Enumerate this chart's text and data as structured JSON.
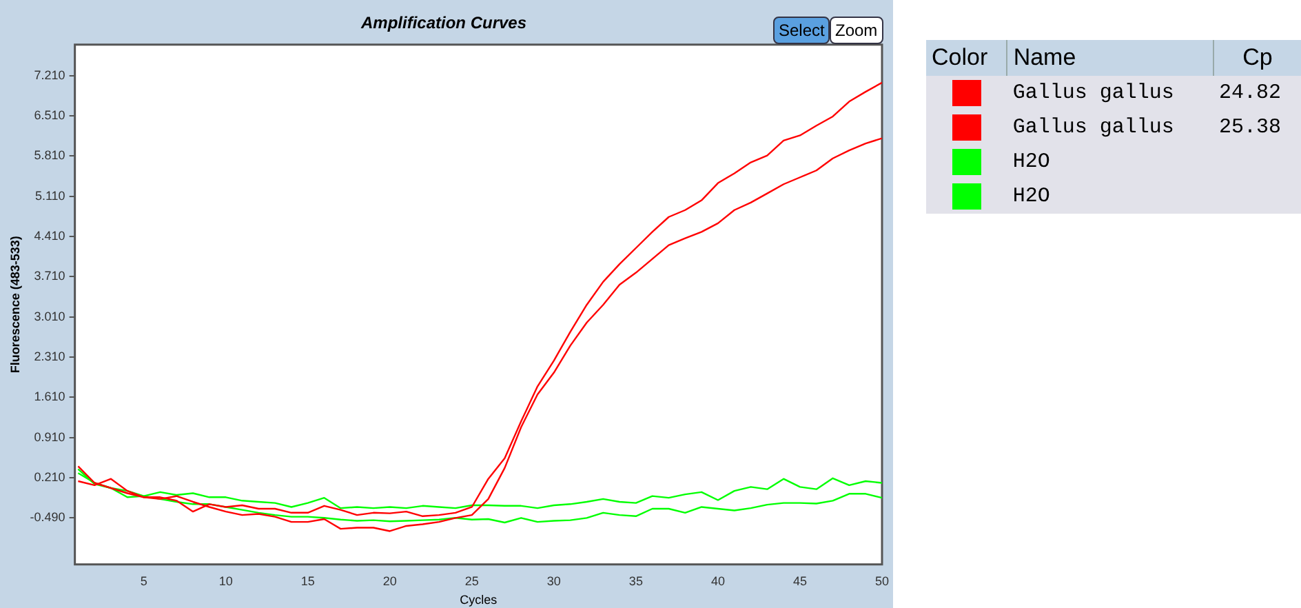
{
  "chart_data": {
    "type": "line",
    "title": "Amplification Curves",
    "xlabel": "Cycles",
    "ylabel": "Fluorescence (483-533)",
    "x": [
      1,
      2,
      3,
      4,
      5,
      6,
      7,
      8,
      9,
      10,
      11,
      12,
      13,
      14,
      15,
      16,
      17,
      18,
      19,
      20,
      21,
      22,
      23,
      24,
      25,
      26,
      27,
      28,
      29,
      30,
      31,
      32,
      33,
      34,
      35,
      36,
      37,
      38,
      39,
      40,
      41,
      42,
      43,
      44,
      45,
      46,
      47,
      48,
      49,
      50
    ],
    "xlim": [
      0.8,
      50
    ],
    "xticks": [
      5,
      10,
      15,
      20,
      25,
      30,
      35,
      40,
      45,
      50
    ],
    "ylim": [
      -1.3,
      7.75
    ],
    "yticks": [
      {
        "value": -0.49,
        "label": "-0.490"
      },
      {
        "value": 0.21,
        "label": "0.210"
      },
      {
        "value": 0.91,
        "label": "0.910"
      },
      {
        "value": 1.61,
        "label": "1.610"
      },
      {
        "value": 2.31,
        "label": "2.310"
      },
      {
        "value": 3.01,
        "label": "3.010"
      },
      {
        "value": 3.71,
        "label": "3.710"
      },
      {
        "value": 4.41,
        "label": "4.410"
      },
      {
        "value": 5.11,
        "label": "5.110"
      },
      {
        "value": 5.81,
        "label": "5.810"
      },
      {
        "value": 6.51,
        "label": "6.510"
      },
      {
        "value": 7.21,
        "label": "7.210"
      }
    ],
    "grid": false,
    "legend": "right",
    "marker": "none",
    "line_style": "solid",
    "annotations": [
      "Select",
      "Zoom",
      "Color",
      "Name",
      "Cp",
      "24.82",
      "25.38"
    ],
    "series": [
      {
        "name": "Gallus gallus",
        "color": "#ff0000",
        "values": [
          0.15,
          0.08,
          0.19,
          -0.02,
          -0.13,
          -0.13,
          -0.19,
          -0.38,
          -0.25,
          -0.3,
          -0.27,
          -0.33,
          -0.33,
          -0.4,
          -0.4,
          -0.28,
          -0.35,
          -0.44,
          -0.4,
          -0.41,
          -0.38,
          -0.46,
          -0.44,
          -0.4,
          -0.3,
          0.19,
          0.55,
          1.19,
          1.8,
          2.25,
          2.75,
          3.22,
          3.62,
          3.93,
          4.21,
          4.49,
          4.75,
          4.87,
          5.04,
          5.34,
          5.51,
          5.7,
          5.82,
          6.08,
          6.17,
          6.34,
          6.5,
          6.76,
          6.93,
          7.09
        ]
      },
      {
        "name": "Gallus gallus",
        "color": "#ff0000",
        "values": [
          0.41,
          0.12,
          0.03,
          -0.06,
          -0.13,
          -0.16,
          -0.11,
          -0.21,
          -0.3,
          -0.38,
          -0.44,
          -0.42,
          -0.47,
          -0.56,
          -0.56,
          -0.51,
          -0.68,
          -0.66,
          -0.66,
          -0.72,
          -0.63,
          -0.6,
          -0.56,
          -0.49,
          -0.44,
          -0.16,
          0.38,
          1.09,
          1.66,
          2.04,
          2.51,
          2.91,
          3.22,
          3.57,
          3.78,
          4.02,
          4.26,
          4.38,
          4.49,
          4.64,
          4.87,
          5.0,
          5.16,
          5.32,
          5.44,
          5.56,
          5.77,
          5.91,
          6.03,
          6.12
        ]
      },
      {
        "name": "H2O",
        "color": "#00ff00",
        "values": [
          0.36,
          0.1,
          0.03,
          -0.13,
          -0.11,
          -0.04,
          -0.09,
          -0.06,
          -0.13,
          -0.13,
          -0.19,
          -0.21,
          -0.23,
          -0.3,
          -0.23,
          -0.14,
          -0.32,
          -0.3,
          -0.32,
          -0.3,
          -0.32,
          -0.28,
          -0.3,
          -0.32,
          -0.27,
          -0.27,
          -0.28,
          -0.28,
          -0.32,
          -0.27,
          -0.25,
          -0.21,
          -0.16,
          -0.21,
          -0.23,
          -0.11,
          -0.14,
          -0.08,
          -0.04,
          -0.18,
          -0.02,
          0.05,
          0.01,
          0.19,
          0.05,
          0.01,
          0.2,
          0.08,
          0.15,
          0.12
        ]
      },
      {
        "name": "H2O",
        "color": "#00ff00",
        "values": [
          0.29,
          0.12,
          0.03,
          -0.02,
          -0.11,
          -0.16,
          -0.21,
          -0.25,
          -0.25,
          -0.3,
          -0.35,
          -0.4,
          -0.44,
          -0.47,
          -0.47,
          -0.49,
          -0.52,
          -0.54,
          -0.53,
          -0.55,
          -0.54,
          -0.53,
          -0.52,
          -0.49,
          -0.52,
          -0.51,
          -0.57,
          -0.49,
          -0.56,
          -0.54,
          -0.53,
          -0.49,
          -0.4,
          -0.44,
          -0.46,
          -0.33,
          -0.33,
          -0.4,
          -0.3,
          -0.33,
          -0.36,
          -0.32,
          -0.26,
          -0.23,
          -0.23,
          -0.24,
          -0.19,
          -0.07,
          -0.07,
          -0.14
        ]
      }
    ]
  }
}
